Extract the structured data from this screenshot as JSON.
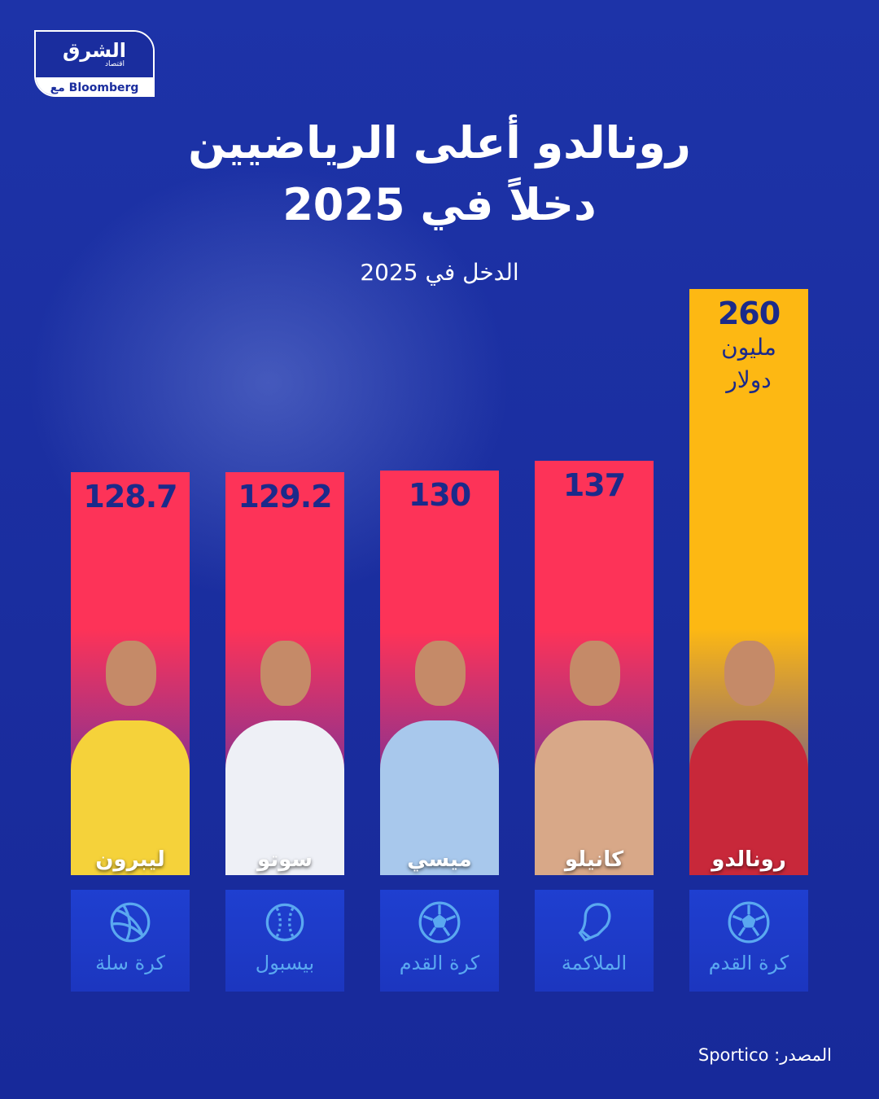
{
  "logo": {
    "arabic": "الشرق",
    "sub": "اقتصاد",
    "partner": "مع Bloomberg"
  },
  "title": {
    "line1": "رونالدو أعلى الرياضيين",
    "line2": "دخلاً في 2025"
  },
  "subtitle": "الدخل في 2025",
  "colors": {
    "background": "#1a2d9e",
    "bar": "#fd3358",
    "highlight": "#fdb813",
    "value_text": "#1b2a8a",
    "sport_icon": "#5aa8f0"
  },
  "chart_data": {
    "type": "bar",
    "title": "رونالدو أعلى الرياضيين دخلاً في 2025",
    "subtitle": "الدخل في 2025",
    "unit": "مليون دولار",
    "categories": [
      "رونالدو",
      "كانيلو",
      "ميسي",
      "سوتو",
      "ليبرون"
    ],
    "values": [
      260,
      137,
      130,
      129.2,
      128.7
    ],
    "value_labels": [
      "260",
      "137",
      "130",
      "129.2",
      "128.7"
    ],
    "sports": [
      "كرة القدم",
      "الملاكمة",
      "كرة القدم",
      "بيسبول",
      "كرة سلة"
    ],
    "sport_icons": [
      "soccer-ball-icon",
      "boxing-glove-icon",
      "soccer-ball-icon",
      "baseball-icon",
      "basketball-icon"
    ],
    "highlight": "رونالدو",
    "unit_lines": [
      "مليون",
      "دولار"
    ]
  },
  "source": "المصدر: Sportico"
}
